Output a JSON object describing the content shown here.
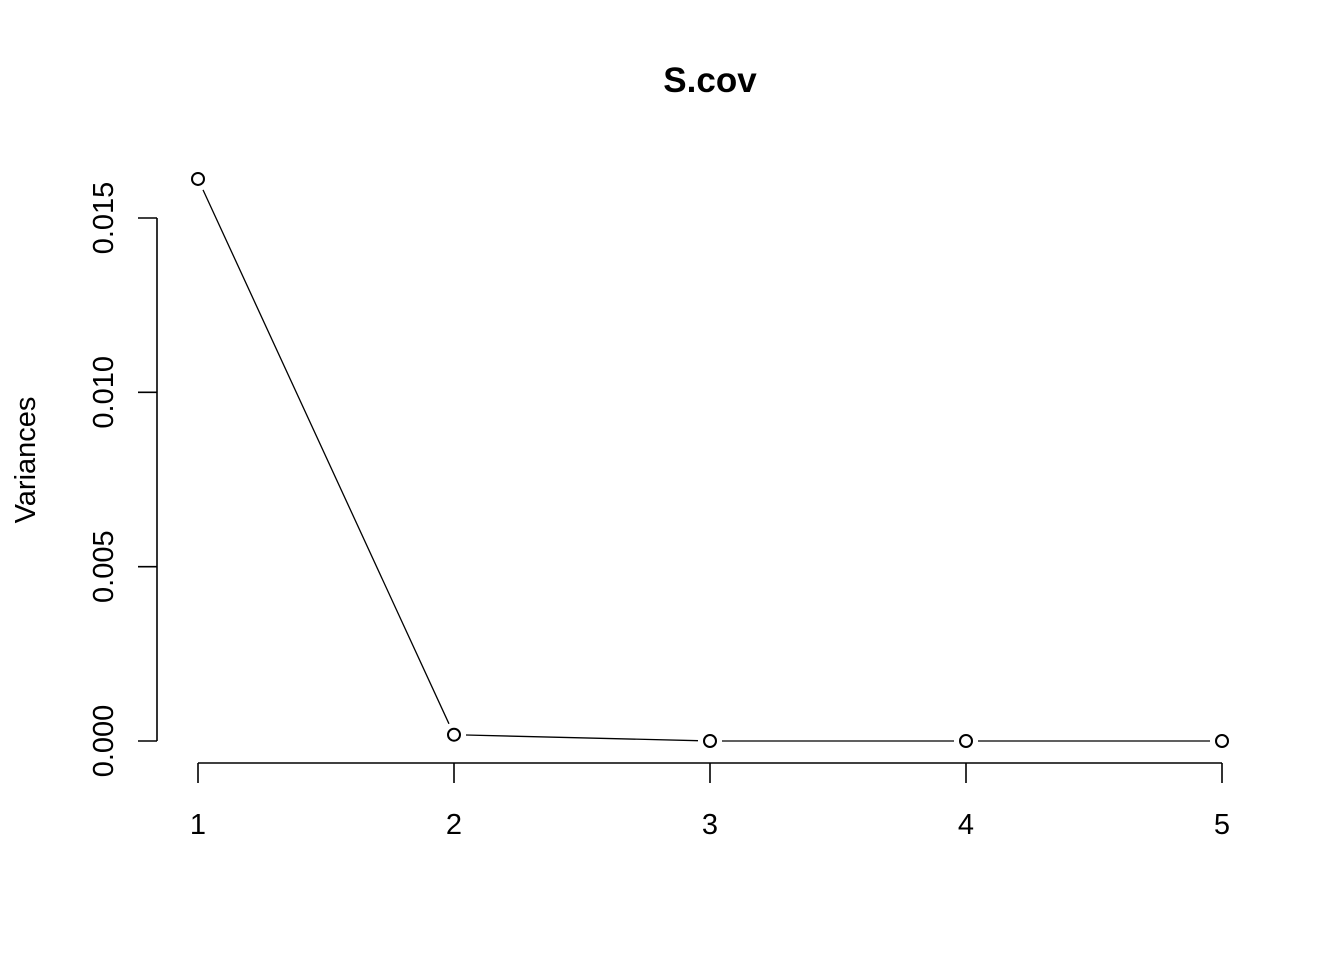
{
  "chart_data": {
    "type": "line",
    "title": "S.cov",
    "xlabel": "",
    "ylabel": "Variances",
    "x": [
      1,
      2,
      3,
      4,
      5
    ],
    "values": [
      0.01612,
      0.00018,
      0.0,
      0.0,
      0.0
    ],
    "xticks": [
      "1",
      "2",
      "3",
      "4",
      "5"
    ],
    "yticks": [
      0.0,
      0.005,
      0.01,
      0.015
    ],
    "ytick_labels": [
      "0.000",
      "0.005",
      "0.010",
      "0.015"
    ],
    "xlim": [
      1,
      5
    ],
    "ylim": [
      0,
      0.016
    ],
    "grid": false,
    "markers": "open-circle",
    "colors": {
      "line": "#000000",
      "marker_fill": "#ffffff",
      "marker_stroke": "#000000"
    }
  }
}
